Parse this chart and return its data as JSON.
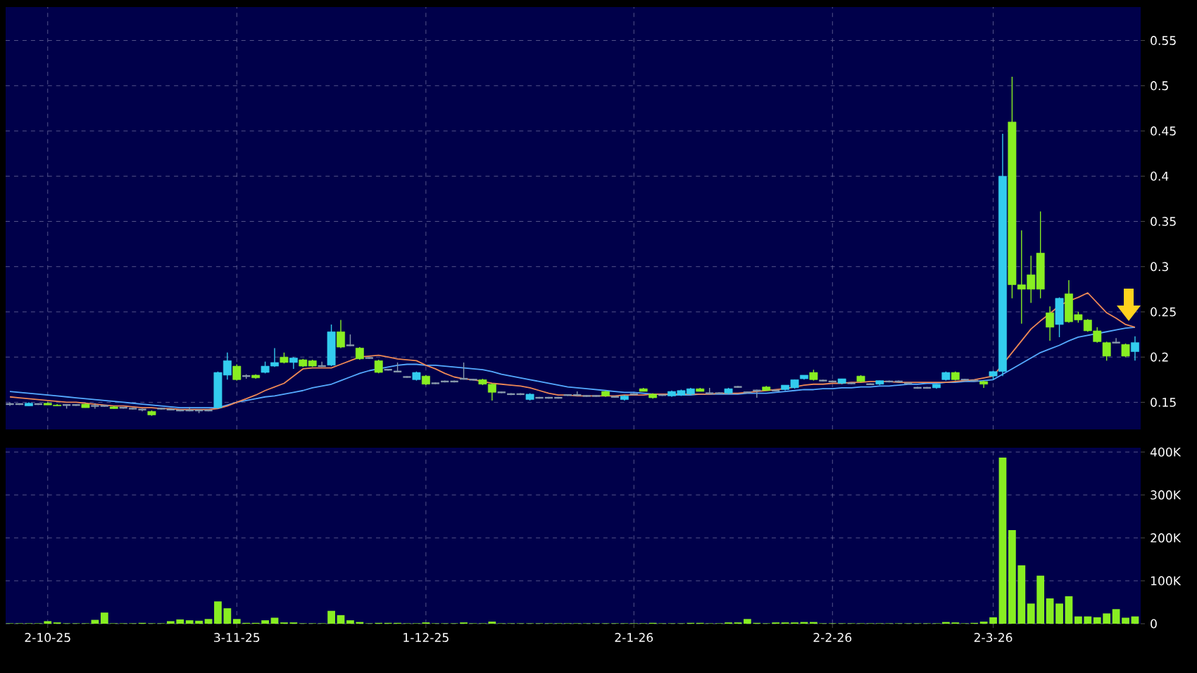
{
  "chart_data": [
    {
      "type": "candlestick",
      "grid": true,
      "tick_labels": "y",
      "ylim": [
        0.12,
        0.587
      ],
      "yticks": [
        0.15,
        0.2,
        0.25,
        0.3,
        0.35,
        0.4,
        0.45,
        0.5,
        0.55
      ],
      "categories": [
        null,
        null,
        null,
        null,
        null,
        null,
        null,
        null,
        null,
        null,
        null,
        null,
        null,
        null,
        null,
        null,
        null,
        null,
        null,
        null,
        null,
        null,
        null,
        null,
        null,
        null,
        null,
        null,
        null,
        null,
        null,
        null,
        null,
        null,
        null,
        null,
        null,
        null,
        null,
        null,
        null,
        null,
        null,
        null,
        null,
        null,
        null,
        null,
        null,
        null,
        null,
        null,
        null,
        null,
        null,
        null,
        null,
        null,
        null,
        null,
        null,
        null,
        null,
        null,
        null,
        null,
        null,
        null,
        null,
        null,
        null,
        null,
        null,
        null,
        null,
        null,
        null,
        null,
        null,
        null,
        null,
        null,
        null,
        null,
        null,
        null,
        null,
        null,
        null,
        null,
        null,
        null,
        null,
        null,
        null,
        null,
        null,
        null,
        null,
        null,
        null,
        null,
        null,
        null,
        null,
        null,
        null,
        null,
        null,
        null,
        null,
        null,
        null,
        null,
        null,
        null,
        null,
        null,
        null,
        null
      ],
      "series": [
        {
          "type": "line",
          "color": "#55aaff",
          "values": [
            0.162,
            0.161,
            0.16,
            0.159,
            0.158,
            0.157,
            0.156,
            0.155,
            0.154,
            0.153,
            0.152,
            0.151,
            0.15,
            0.149,
            0.148,
            0.147,
            0.146,
            0.145,
            0.144,
            0.144,
            0.144,
            0.144,
            0.144,
            0.147,
            0.15,
            0.152,
            0.154,
            0.156,
            0.157,
            0.159,
            0.161,
            0.163,
            0.166,
            0.168,
            0.17,
            0.174,
            0.178,
            0.182,
            0.185,
            0.187,
            0.189,
            0.191,
            0.192,
            0.192,
            0.191,
            0.191,
            0.19,
            0.189,
            0.188,
            0.187,
            0.186,
            0.184,
            0.181,
            0.179,
            0.177,
            0.175,
            0.173,
            0.171,
            0.169,
            0.167,
            0.166,
            0.165,
            0.164,
            0.163,
            0.162,
            0.161,
            0.161,
            0.16,
            0.159,
            0.159,
            0.158,
            0.158,
            0.158,
            0.159,
            0.159,
            0.159,
            0.159,
            0.159,
            0.16,
            0.16,
            0.16,
            0.161,
            0.162,
            0.163,
            0.164,
            0.164,
            0.165,
            0.165,
            0.166,
            0.166,
            0.167,
            0.167,
            0.168,
            0.168,
            0.169,
            0.17,
            0.17,
            0.171,
            0.171,
            0.172,
            0.172,
            0.173,
            0.173,
            0.174,
            0.175,
            0.181,
            0.187,
            0.193,
            0.199,
            0.205,
            0.209,
            0.213,
            0.218,
            0.222,
            0.224,
            0.226,
            0.228,
            0.23,
            0.232,
            0.233
          ]
        },
        {
          "type": "line",
          "color": "#ee8855",
          "values": [
            0.156,
            0.155,
            0.154,
            0.153,
            0.152,
            0.151,
            0.15,
            0.15,
            0.149,
            0.148,
            0.147,
            0.146,
            0.146,
            0.145,
            0.144,
            0.144,
            0.143,
            0.143,
            0.142,
            0.142,
            0.142,
            0.142,
            0.143,
            0.146,
            0.15,
            0.154,
            0.158,
            0.163,
            0.167,
            0.171,
            0.179,
            0.187,
            0.188,
            0.188,
            0.188,
            0.192,
            0.196,
            0.2,
            0.201,
            0.202,
            0.2,
            0.198,
            0.197,
            0.196,
            0.191,
            0.187,
            0.182,
            0.178,
            0.176,
            0.175,
            0.173,
            0.171,
            0.17,
            0.169,
            0.168,
            0.166,
            0.163,
            0.16,
            0.158,
            0.158,
            0.157,
            0.157,
            0.157,
            0.157,
            0.157,
            0.158,
            0.158,
            0.158,
            0.159,
            0.159,
            0.159,
            0.159,
            0.159,
            0.159,
            0.159,
            0.16,
            0.16,
            0.16,
            0.161,
            0.162,
            0.163,
            0.164,
            0.165,
            0.167,
            0.169,
            0.17,
            0.17,
            0.171,
            0.171,
            0.172,
            0.172,
            0.173,
            0.173,
            0.173,
            0.172,
            0.172,
            0.172,
            0.172,
            0.172,
            0.172,
            0.173,
            0.174,
            0.175,
            0.177,
            0.179,
            0.192,
            0.205,
            0.218,
            0.231,
            0.24,
            0.248,
            0.257,
            0.262,
            0.266,
            0.271,
            0.26,
            0.249,
            0.243,
            0.236,
            0.233
          ]
        },
        {
          "type": "candlestick",
          "ohlc": [
            [
              0.148,
              0.15,
              0.146,
              0.148
            ],
            [
              0.148,
              0.149,
              0.147,
              0.148
            ],
            [
              0.146,
              0.15,
              0.146,
              0.149
            ],
            [
              0.148,
              0.149,
              0.147,
              0.148
            ],
            [
              0.149,
              0.15,
              0.147,
              0.147
            ],
            [
              0.147,
              0.148,
              0.146,
              0.146
            ],
            [
              0.147,
              0.148,
              0.143,
              0.147
            ],
            [
              0.147,
              0.148,
              0.146,
              0.147
            ],
            [
              0.148,
              0.149,
              0.144,
              0.144
            ],
            [
              0.146,
              0.149,
              0.143,
              0.146
            ],
            [
              0.146,
              0.147,
              0.145,
              0.146
            ],
            [
              0.145,
              0.146,
              0.143,
              0.143
            ],
            [
              0.144,
              0.145,
              0.143,
              0.144
            ],
            [
              0.143,
              0.144,
              0.142,
              0.143
            ],
            [
              0.142,
              0.143,
              0.14,
              0.142
            ],
            [
              0.14,
              0.141,
              0.135,
              0.136
            ],
            [
              0.143,
              0.144,
              0.142,
              0.143
            ],
            [
              0.142,
              0.143,
              0.141,
              0.142
            ],
            [
              0.141,
              0.142,
              0.14,
              0.141
            ],
            [
              0.141,
              0.145,
              0.14,
              0.141
            ],
            [
              0.141,
              0.142,
              0.138,
              0.141
            ],
            [
              0.141,
              0.142,
              0.14,
              0.141
            ],
            [
              0.144,
              0.184,
              0.143,
              0.183
            ],
            [
              0.18,
              0.205,
              0.175,
              0.196
            ],
            [
              0.19,
              0.192,
              0.174,
              0.175
            ],
            [
              0.179,
              0.181,
              0.176,
              0.179
            ],
            [
              0.18,
              0.181,
              0.176,
              0.177
            ],
            [
              0.183,
              0.195,
              0.182,
              0.19
            ],
            [
              0.19,
              0.21,
              0.189,
              0.194
            ],
            [
              0.2,
              0.205,
              0.193,
              0.194
            ],
            [
              0.194,
              0.2,
              0.187,
              0.199
            ],
            [
              0.197,
              0.198,
              0.189,
              0.19
            ],
            [
              0.196,
              0.197,
              0.189,
              0.19
            ],
            [
              0.19,
              0.195,
              0.189,
              0.19
            ],
            [
              0.191,
              0.236,
              0.19,
              0.228
            ],
            [
              0.228,
              0.241,
              0.21,
              0.211
            ],
            [
              0.213,
              0.225,
              0.212,
              0.213
            ],
            [
              0.21,
              0.211,
              0.197,
              0.198
            ],
            [
              0.199,
              0.2,
              0.198,
              0.199
            ],
            [
              0.196,
              0.197,
              0.182,
              0.183
            ],
            [
              0.186,
              0.187,
              0.185,
              0.186
            ],
            [
              0.184,
              0.194,
              0.183,
              0.184
            ],
            [
              0.178,
              0.179,
              0.177,
              0.178
            ],
            [
              0.175,
              0.184,
              0.174,
              0.183
            ],
            [
              0.179,
              0.18,
              0.169,
              0.17
            ],
            [
              0.171,
              0.172,
              0.17,
              0.171
            ],
            [
              0.173,
              0.174,
              0.172,
              0.173
            ],
            [
              0.173,
              0.174,
              0.172,
              0.173
            ],
            [
              0.176,
              0.194,
              0.175,
              0.176
            ],
            [
              0.175,
              0.176,
              0.174,
              0.175
            ],
            [
              0.175,
              0.176,
              0.169,
              0.17
            ],
            [
              0.17,
              0.171,
              0.152,
              0.161
            ],
            [
              0.161,
              0.162,
              0.16,
              0.161
            ],
            [
              0.159,
              0.16,
              0.158,
              0.159
            ],
            [
              0.159,
              0.16,
              0.158,
              0.159
            ],
            [
              0.153,
              0.16,
              0.152,
              0.159
            ],
            [
              0.155,
              0.156,
              0.154,
              0.155
            ],
            [
              0.155,
              0.156,
              0.154,
              0.155
            ],
            [
              0.155,
              0.156,
              0.154,
              0.155
            ],
            [
              0.158,
              0.159,
              0.157,
              0.158
            ],
            [
              0.158,
              0.162,
              0.157,
              0.158
            ],
            [
              0.157,
              0.158,
              0.156,
              0.157
            ],
            [
              0.157,
              0.158,
              0.156,
              0.157
            ],
            [
              0.162,
              0.163,
              0.156,
              0.157
            ],
            [
              0.156,
              0.157,
              0.155,
              0.156
            ],
            [
              0.153,
              0.158,
              0.152,
              0.157
            ],
            [
              0.159,
              0.16,
              0.158,
              0.159
            ],
            [
              0.165,
              0.166,
              0.162,
              0.162
            ],
            [
              0.159,
              0.16,
              0.154,
              0.155
            ],
            [
              0.158,
              0.159,
              0.157,
              0.158
            ],
            [
              0.157,
              0.163,
              0.156,
              0.162
            ],
            [
              0.158,
              0.164,
              0.157,
              0.163
            ],
            [
              0.159,
              0.166,
              0.158,
              0.165
            ],
            [
              0.165,
              0.166,
              0.162,
              0.162
            ],
            [
              0.16,
              0.166,
              0.159,
              0.16
            ],
            [
              0.16,
              0.161,
              0.159,
              0.16
            ],
            [
              0.16,
              0.166,
              0.159,
              0.165
            ],
            [
              0.167,
              0.168,
              0.166,
              0.167
            ],
            [
              0.161,
              0.162,
              0.16,
              0.161
            ],
            [
              0.163,
              0.164,
              0.155,
              0.163
            ],
            [
              0.167,
              0.168,
              0.163,
              0.163
            ],
            [
              0.163,
              0.164,
              0.162,
              0.163
            ],
            [
              0.164,
              0.169,
              0.163,
              0.169
            ],
            [
              0.166,
              0.175,
              0.165,
              0.175
            ],
            [
              0.176,
              0.18,
              0.175,
              0.18
            ],
            [
              0.183,
              0.186,
              0.174,
              0.175
            ],
            [
              0.174,
              0.175,
              0.173,
              0.174
            ],
            [
              0.173,
              0.174,
              0.172,
              0.173
            ],
            [
              0.171,
              0.176,
              0.17,
              0.176
            ],
            [
              0.171,
              0.172,
              0.17,
              0.171
            ],
            [
              0.179,
              0.18,
              0.172,
              0.173
            ],
            [
              0.17,
              0.171,
              0.169,
              0.17
            ],
            [
              0.17,
              0.174,
              0.169,
              0.174
            ],
            [
              0.173,
              0.174,
              0.172,
              0.173
            ],
            [
              0.173,
              0.174,
              0.172,
              0.173
            ],
            [
              0.171,
              0.172,
              0.17,
              0.171
            ],
            [
              0.166,
              0.167,
              0.165,
              0.166
            ],
            [
              0.166,
              0.167,
              0.165,
              0.166
            ],
            [
              0.166,
              0.17,
              0.165,
              0.17
            ],
            [
              0.175,
              0.184,
              0.174,
              0.183
            ],
            [
              0.183,
              0.184,
              0.174,
              0.175
            ],
            [
              0.175,
              0.176,
              0.174,
              0.175
            ],
            [
              0.174,
              0.175,
              0.173,
              0.174
            ],
            [
              0.173,
              0.174,
              0.166,
              0.17
            ],
            [
              0.179,
              0.185,
              0.175,
              0.184
            ],
            [
              0.184,
              0.447,
              0.179,
              0.4
            ],
            [
              0.46,
              0.51,
              0.265,
              0.28
            ],
            [
              0.28,
              0.34,
              0.237,
              0.275
            ],
            [
              0.291,
              0.312,
              0.26,
              0.275
            ],
            [
              0.315,
              0.361,
              0.265,
              0.275
            ],
            [
              0.249,
              0.256,
              0.218,
              0.233
            ],
            [
              0.236,
              0.266,
              0.222,
              0.265
            ],
            [
              0.27,
              0.285,
              0.238,
              0.239
            ],
            [
              0.247,
              0.25,
              0.238,
              0.241
            ],
            [
              0.241,
              0.242,
              0.228,
              0.229
            ],
            [
              0.229,
              0.233,
              0.216,
              0.217
            ],
            [
              0.216,
              0.217,
              0.196,
              0.201
            ],
            [
              0.216,
              0.221,
              0.215,
              0.216
            ],
            [
              0.214,
              0.215,
              0.2,
              0.201
            ],
            [
              0.206,
              0.223,
              0.196,
              0.216
            ]
          ],
          "colors": [
            "#8899aa",
            "#8899aa",
            "#33ccee",
            "#8899aa",
            "#88ee22",
            "#88ee22",
            "#8899aa",
            "#8899aa",
            "#88ee22",
            "#8899aa",
            "#8899aa",
            "#88ee22",
            "#8899aa",
            "#8899aa",
            "#8899aa",
            "#88ee22",
            "#8899aa",
            "#8899aa",
            "#8899aa",
            "#8899aa",
            "#8899aa",
            "#8899aa",
            "#33ccee",
            "#33ccee",
            "#88ee22",
            "#8899aa",
            "#88ee22",
            "#33ccee",
            "#33ccee",
            "#88ee22",
            "#33ccee",
            "#88ee22",
            "#88ee22",
            "#8899aa",
            "#33ccee",
            "#88ee22",
            "#8899aa",
            "#88ee22",
            "#8899aa",
            "#88ee22",
            "#8899aa",
            "#8899aa",
            "#8899aa",
            "#33ccee",
            "#88ee22",
            "#8899aa",
            "#8899aa",
            "#8899aa",
            "#8899aa",
            "#8899aa",
            "#88ee22",
            "#88ee22",
            "#8899aa",
            "#8899aa",
            "#8899aa",
            "#33ccee",
            "#8899aa",
            "#8899aa",
            "#8899aa",
            "#8899aa",
            "#8899aa",
            "#8899aa",
            "#8899aa",
            "#88ee22",
            "#8899aa",
            "#33ccee",
            "#8899aa",
            "#88ee22",
            "#88ee22",
            "#8899aa",
            "#33ccee",
            "#33ccee",
            "#33ccee",
            "#88ee22",
            "#8899aa",
            "#8899aa",
            "#33ccee",
            "#8899aa",
            "#8899aa",
            "#8899aa",
            "#88ee22",
            "#8899aa",
            "#33ccee",
            "#33ccee",
            "#33ccee",
            "#88ee22",
            "#8899aa",
            "#8899aa",
            "#33ccee",
            "#8899aa",
            "#88ee22",
            "#8899aa",
            "#33ccee",
            "#8899aa",
            "#8899aa",
            "#8899aa",
            "#8899aa",
            "#8899aa",
            "#33ccee",
            "#33ccee",
            "#88ee22",
            "#8899aa",
            "#8899aa",
            "#88ee22",
            "#33ccee",
            "#33ccee",
            "#88ee22",
            "#88ee22",
            "#88ee22",
            "#88ee22",
            "#88ee22",
            "#33ccee",
            "#88ee22",
            "#88ee22",
            "#88ee22",
            "#88ee22",
            "#88ee22",
            "#8899aa",
            "#88ee22",
            "#33ccee"
          ]
        }
      ]
    },
    {
      "type": "bar",
      "grid": true,
      "color": "#88ee22",
      "ylim": [
        0,
        410000
      ],
      "yticks": [
        0,
        {
          "value": 100000,
          "label": "100K"
        },
        {
          "value": 200000,
          "label": "200K"
        },
        {
          "value": 300000,
          "label": "300K"
        },
        {
          "value": 400000,
          "label": "400K"
        }
      ],
      "categories": [
        null,
        null,
        null,
        null,
        "2-10-25",
        null,
        null,
        null,
        null,
        null,
        null,
        null,
        null,
        null,
        null,
        null,
        null,
        null,
        null,
        null,
        null,
        null,
        null,
        null,
        "3-11-25",
        null,
        null,
        null,
        null,
        null,
        null,
        null,
        null,
        null,
        null,
        null,
        null,
        null,
        null,
        null,
        null,
        null,
        null,
        null,
        "1-12-25",
        null,
        null,
        null,
        null,
        null,
        null,
        null,
        null,
        null,
        null,
        null,
        null,
        null,
        null,
        null,
        null,
        null,
        null,
        null,
        null,
        null,
        "2-1-26",
        null,
        null,
        null,
        null,
        null,
        null,
        null,
        null,
        null,
        null,
        null,
        null,
        null,
        null,
        null,
        null,
        null,
        null,
        null,
        null,
        "2-2-26",
        null,
        null,
        null,
        null,
        null,
        null,
        null,
        null,
        null,
        null,
        null,
        null,
        null,
        null,
        null,
        null,
        "2-3-26",
        null,
        null,
        null,
        null,
        null,
        null,
        null,
        null,
        null,
        null,
        null,
        null,
        null,
        null,
        null
      ],
      "values": [
        1000,
        1000,
        1000,
        1000,
        6000,
        3000,
        1000,
        1000,
        1000,
        9000,
        26000,
        1000,
        1000,
        1000,
        2000,
        1000,
        1000,
        6000,
        10000,
        8000,
        7000,
        11000,
        52000,
        36000,
        11000,
        2000,
        2000,
        8000,
        14000,
        3000,
        3000,
        1000,
        1000,
        1000,
        30000,
        20000,
        8000,
        4000,
        1000,
        2000,
        2000,
        2000,
        1000,
        1000,
        3000,
        1000,
        1000,
        1000,
        3000,
        1000,
        1000,
        5000,
        1000,
        1000,
        1000,
        1000,
        1000,
        1000,
        1000,
        1000,
        1000,
        1000,
        1000,
        1000,
        1000,
        1000,
        1000,
        1000,
        2000,
        1000,
        1000,
        1000,
        2000,
        2000,
        1000,
        1000,
        3000,
        3000,
        11000,
        2000,
        1000,
        3000,
        3000,
        3000,
        4000,
        4000,
        1000,
        1000,
        1000,
        1000,
        1000,
        1000,
        1000,
        1000,
        1000,
        1000,
        1000,
        1000,
        1000,
        4000,
        3000,
        1000,
        2000,
        5000,
        15000,
        387000,
        218000,
        136000,
        47000,
        112000,
        59000,
        47000,
        64000,
        17000,
        17000,
        15000,
        24000,
        34000,
        14000,
        17000
      ]
    }
  ]
}
